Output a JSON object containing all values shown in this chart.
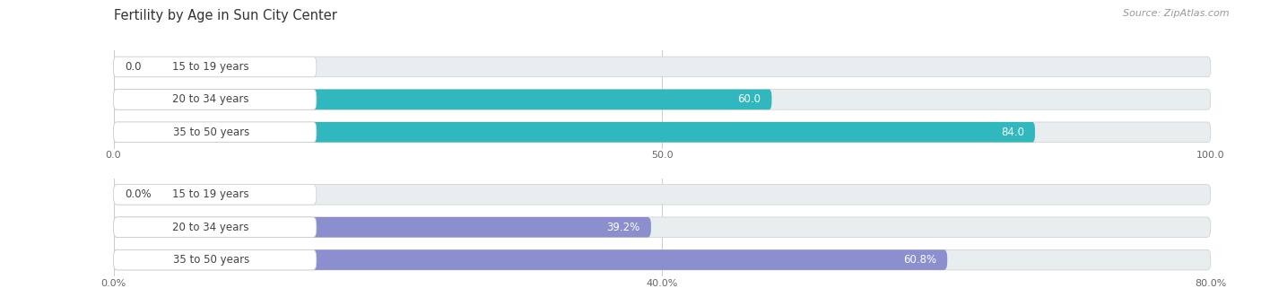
{
  "title": "Fertility by Age in Sun City Center",
  "source": "Source: ZipAtlas.com",
  "chart1": {
    "categories": [
      "15 to 19 years",
      "20 to 34 years",
      "35 to 50 years"
    ],
    "values": [
      0.0,
      60.0,
      84.0
    ],
    "max_value": 100.0,
    "tick_values": [
      0.0,
      50.0,
      100.0
    ],
    "tick_labels": [
      "0.0",
      "50.0",
      "100.0"
    ],
    "bar_color": "#31b8be",
    "bg_color": "#e8eef0",
    "label_bg": "#ffffff"
  },
  "chart2": {
    "categories": [
      "15 to 19 years",
      "20 to 34 years",
      "35 to 50 years"
    ],
    "values": [
      0.0,
      39.2,
      60.8
    ],
    "max_value": 80.0,
    "tick_values": [
      0.0,
      40.0,
      80.0
    ],
    "tick_labels": [
      "0.0%",
      "40.0%",
      "80.0%"
    ],
    "bar_color": "#8b8fce",
    "bg_color": "#e8eef0",
    "label_bg": "#ffffff"
  },
  "background_color": "#ffffff",
  "grid_color": "#cccccc",
  "text_color": "#444444",
  "title_color": "#333333",
  "source_color": "#999999",
  "category_fontsize": 8.5,
  "value_fontsize": 8.5,
  "title_fontsize": 10.5,
  "source_fontsize": 8,
  "tick_fontsize": 8
}
